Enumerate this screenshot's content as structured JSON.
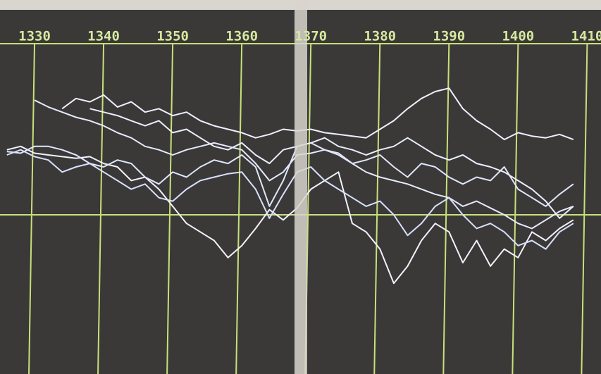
{
  "chart_data": {
    "type": "line",
    "x": [
      1326,
      1328,
      1330,
      1332,
      1334,
      1336,
      1338,
      1340,
      1342,
      1344,
      1346,
      1348,
      1350,
      1352,
      1354,
      1356,
      1358,
      1360,
      1362,
      1364,
      1366,
      1368,
      1370,
      1372,
      1374,
      1376,
      1378,
      1380,
      1382,
      1384,
      1386,
      1388,
      1390,
      1392,
      1394,
      1396,
      1398,
      1400,
      1402,
      1404,
      1406,
      1408
    ],
    "xlim": [
      1325,
      1412
    ],
    "xticks": [
      1330,
      1340,
      1350,
      1360,
      1370,
      1380,
      1390,
      1400,
      1410
    ],
    "ylim": [
      -93,
      100
    ],
    "reference_line": 0,
    "grid": true,
    "grid_color": "#c8e07a",
    "series": [
      {
        "color": "#eef0ff",
        "values": [
          null,
          null,
          null,
          null,
          62,
          68,
          66,
          70,
          63,
          66,
          60,
          62,
          58,
          60,
          55,
          52,
          50,
          48,
          45,
          47,
          50,
          49,
          50,
          48,
          47,
          46,
          45,
          50,
          55,
          62,
          68,
          72,
          74,
          62,
          55,
          50,
          44,
          48,
          46,
          45,
          47,
          44
        ]
      },
      {
        "color": "#e6eaff",
        "values": [
          null,
          null,
          67,
          63,
          60,
          57,
          55,
          52,
          48,
          45,
          40,
          38,
          35,
          38,
          40,
          42,
          40,
          38,
          30,
          20,
          25,
          35,
          36,
          38,
          36,
          30,
          25,
          22,
          20,
          18,
          15,
          12,
          10,
          5,
          8,
          4,
          0,
          -5,
          -8,
          -3,
          2,
          5
        ]
      },
      {
        "color": "#f2f2ff",
        "values": [
          38,
          40,
          36,
          35,
          34,
          33,
          34,
          30,
          28,
          20,
          22,
          15,
          5,
          -5,
          -10,
          -15,
          -25,
          -18,
          -8,
          3,
          -3,
          4,
          15,
          20,
          25,
          -5,
          -10,
          -20,
          -40,
          -30,
          -15,
          -5,
          -10,
          -28,
          -15,
          -30,
          -20,
          -25,
          -10,
          -15,
          -8,
          -3
        ]
      },
      {
        "color": "#dfe6ff",
        "values": [
          37,
          36,
          40,
          40,
          38,
          35,
          30,
          28,
          32,
          30,
          22,
          18,
          25,
          22,
          28,
          32,
          30,
          35,
          28,
          5,
          20,
          40,
          42,
          38,
          35,
          30,
          32,
          35,
          28,
          22,
          30,
          28,
          22,
          18,
          22,
          20,
          28,
          15,
          10,
          5,
          12,
          18
        ]
      },
      {
        "color": "#eaeeff",
        "values": [
          null,
          null,
          null,
          null,
          null,
          null,
          62,
          60,
          58,
          55,
          52,
          55,
          48,
          50,
          45,
          40,
          38,
          42,
          35,
          30,
          38,
          40,
          42,
          45,
          40,
          38,
          35,
          38,
          40,
          45,
          40,
          35,
          32,
          35,
          30,
          28,
          25,
          20,
          15,
          8,
          -2,
          5
        ]
      },
      {
        "color": "#d8e0ff",
        "values": [
          35,
          38,
          34,
          32,
          25,
          28,
          30,
          25,
          20,
          15,
          18,
          10,
          8,
          15,
          20,
          22,
          24,
          25,
          15,
          -2,
          12,
          25,
          28,
          20,
          15,
          10,
          5,
          8,
          0,
          -12,
          -5,
          5,
          10,
          0,
          -8,
          -5,
          -10,
          -18,
          -15,
          -20,
          -10,
          -5
        ]
      }
    ]
  }
}
